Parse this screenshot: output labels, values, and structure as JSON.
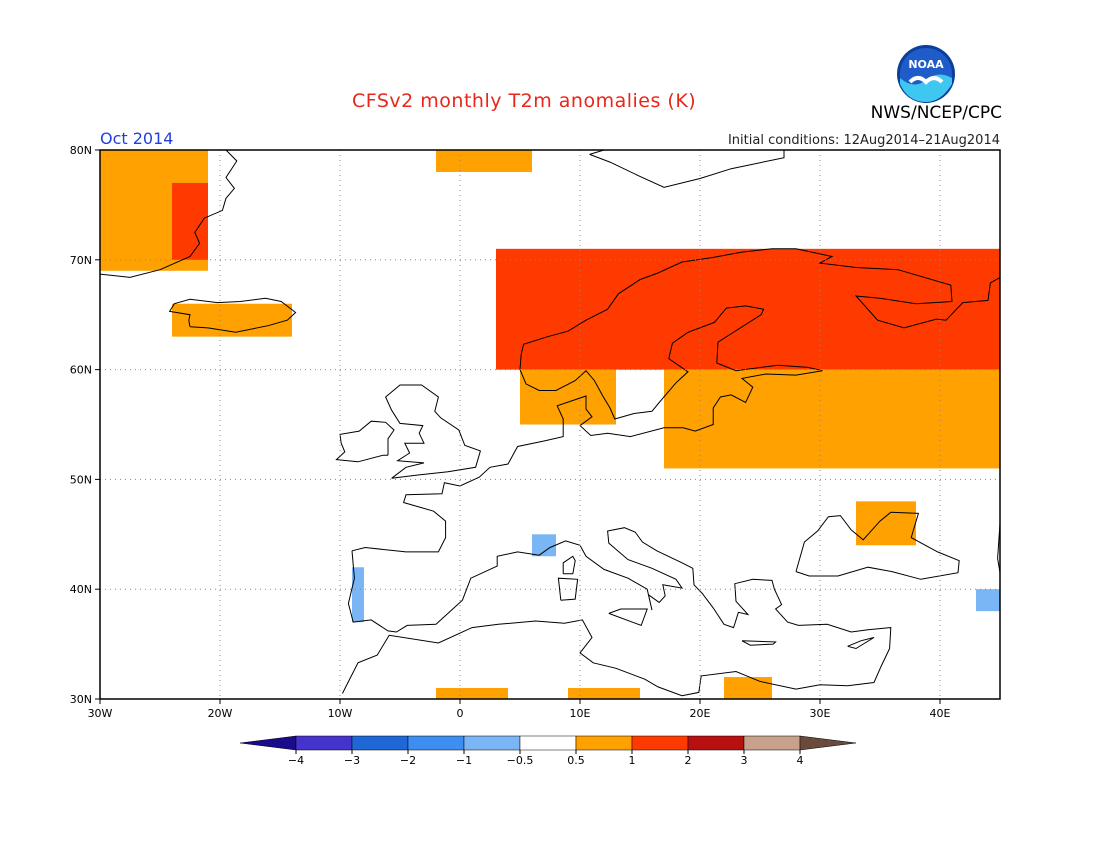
{
  "header": {
    "title": "CFSv2 monthly T2m anomalies (K)",
    "period": "Oct 2014",
    "initial_conditions": "Initial conditions: 12Aug2014–21Aug2014",
    "agency": "NWS/NCEP/CPC",
    "logo_text": "NOAA"
  },
  "map": {
    "lon_range": [
      -30,
      45
    ],
    "lat_range": [
      30,
      80
    ],
    "grid": true,
    "lat_ticks": [
      {
        "value": 80,
        "label": "80N"
      },
      {
        "value": 70,
        "label": "70N"
      },
      {
        "value": 60,
        "label": "60N"
      },
      {
        "value": 50,
        "label": "50N"
      },
      {
        "value": 40,
        "label": "40N"
      },
      {
        "value": 30,
        "label": "30N"
      }
    ],
    "lon_ticks": [
      {
        "value": -30,
        "label": "30W"
      },
      {
        "value": -20,
        "label": "20W"
      },
      {
        "value": -10,
        "label": "10W"
      },
      {
        "value": 0,
        "label": "0"
      },
      {
        "value": 10,
        "label": "10E"
      },
      {
        "value": 20,
        "label": "20E"
      },
      {
        "value": 30,
        "label": "30E"
      },
      {
        "value": 40,
        "label": "40E"
      }
    ]
  },
  "colorbar": {
    "labels": [
      "−4",
      "−3",
      "−2",
      "−1",
      "−0.5",
      "0.5",
      "1",
      "2",
      "3",
      "4"
    ],
    "under_color": "#1a0b8c",
    "over_color": "#6a4a3c",
    "colors": [
      "#4433cc",
      "#1f66d6",
      "#3d8ef0",
      "#7ab6f5",
      "#ffffff",
      "#ffa100",
      "#ff3a00",
      "#b80f10",
      "#c8a08c"
    ]
  },
  "chart_data": {
    "type": "heatmap",
    "title": "CFSv2 monthly T2m anomalies (K)",
    "units": "K",
    "categories_legend": [
      {
        "range": "0.5 to 1",
        "color": "#ffa100"
      },
      {
        "range": "1 to 2",
        "color": "#ff3a00"
      },
      {
        "range": "-1 to -0.5",
        "color": "#7ab6f5"
      }
    ],
    "regions": [
      {
        "level": "0.5 to 1",
        "lon": [
          -30,
          -21
        ],
        "lat": [
          69,
          80
        ]
      },
      {
        "level": "1 to 2",
        "lon": [
          -24,
          -21
        ],
        "lat": [
          70,
          77
        ]
      },
      {
        "level": "0.5 to 1",
        "lon": [
          -24,
          -14
        ],
        "lat": [
          63,
          66
        ]
      },
      {
        "level": "0.5 to 1",
        "lon": [
          -2,
          6
        ],
        "lat": [
          78,
          80
        ]
      },
      {
        "level": "1 to 2",
        "lon": [
          3,
          18
        ],
        "lat": [
          60,
          71
        ]
      },
      {
        "level": "1 to 2",
        "lon": [
          18,
          45
        ],
        "lat": [
          60,
          71
        ]
      },
      {
        "level": "0.5 to 1",
        "lon": [
          5,
          13
        ],
        "lat": [
          55,
          60
        ]
      },
      {
        "level": "0.5 to 1",
        "lon": [
          17,
          45
        ],
        "lat": [
          51,
          60
        ]
      },
      {
        "level": "0.5 to 1",
        "lon": [
          33,
          38
        ],
        "lat": [
          44,
          48
        ]
      },
      {
        "level": "-1 to -0.5",
        "lon": [
          -9,
          -8
        ],
        "lat": [
          37,
          42
        ]
      },
      {
        "level": "-1 to -0.5",
        "lon": [
          6,
          8
        ],
        "lat": [
          43,
          45
        ]
      },
      {
        "level": "-1 to -0.5",
        "lon": [
          43,
          45
        ],
        "lat": [
          38,
          40
        ]
      },
      {
        "level": "0.5 to 1",
        "lon": [
          -2,
          4
        ],
        "lat": [
          30,
          31
        ]
      },
      {
        "level": "0.5 to 1",
        "lon": [
          9,
          15
        ],
        "lat": [
          30,
          31
        ]
      },
      {
        "level": "0.5 to 1",
        "lon": [
          22,
          26
        ],
        "lat": [
          30,
          32
        ]
      }
    ]
  }
}
